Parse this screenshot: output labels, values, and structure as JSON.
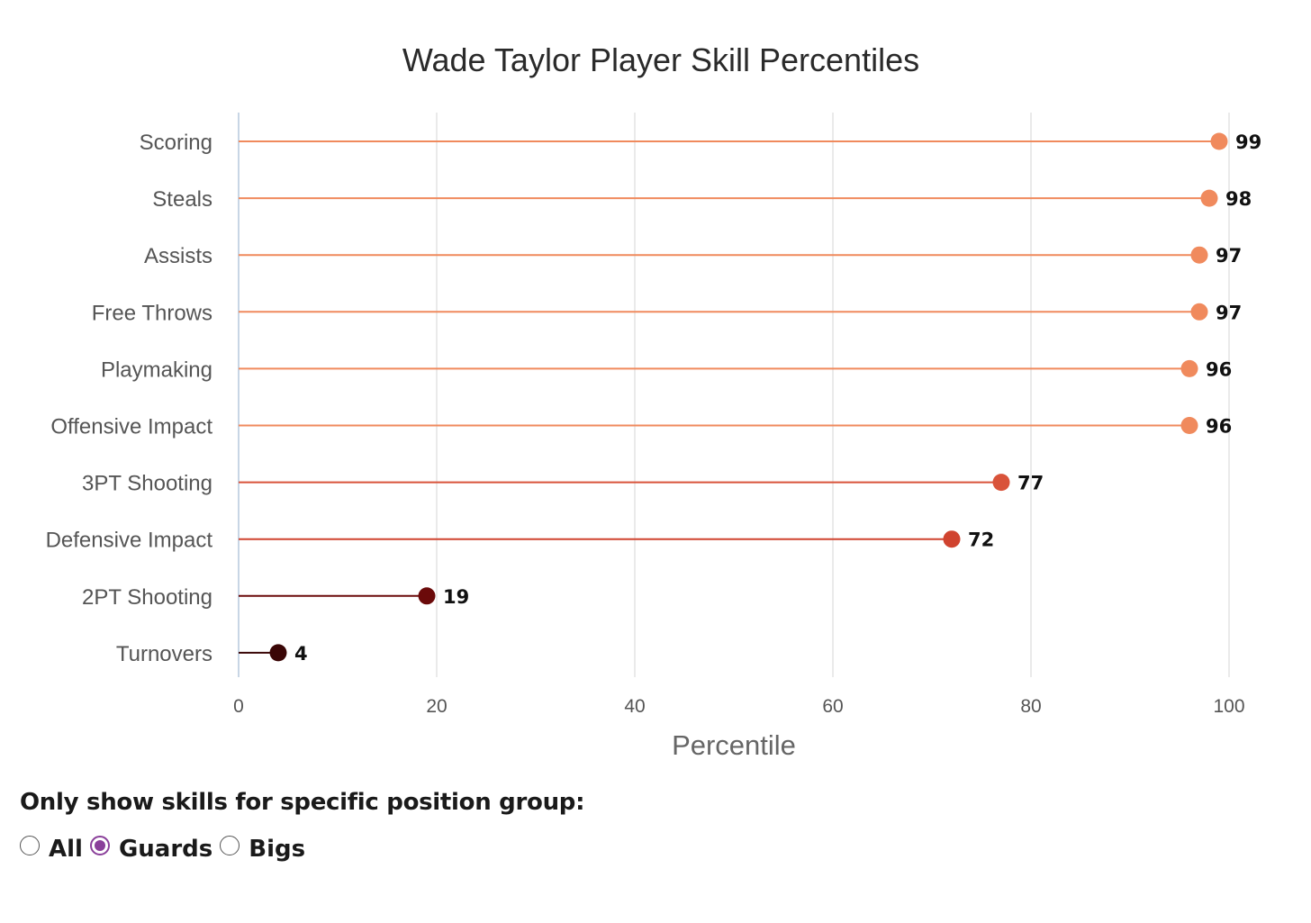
{
  "chart_data": {
    "type": "lollipop",
    "title": "Wade Taylor Player Skill Percentiles",
    "xlabel": "Percentile",
    "ylabel": "",
    "xlim": [
      0,
      100
    ],
    "xticks": [
      "0",
      "20",
      "40",
      "60",
      "80",
      "100"
    ],
    "grid": true,
    "categories": [
      "Scoring",
      "Steals",
      "Assists",
      "Free Throws",
      "Playmaking",
      "Offensive Impact",
      "3PT Shooting",
      "Defensive Impact",
      "2PT Shooting",
      "Turnovers"
    ],
    "values": [
      99,
      98,
      97,
      97,
      96,
      96,
      77,
      72,
      19,
      4
    ],
    "colors": [
      "#f08a5d",
      "#f08a5d",
      "#f08a5d",
      "#f08a5d",
      "#f08a5d",
      "#f08a5d",
      "#d9533a",
      "#d0432f",
      "#6b0a0a",
      "#3a0606"
    ]
  },
  "filter": {
    "heading": "Only show skills for specific position group:",
    "options": [
      {
        "label": "All",
        "checked": false
      },
      {
        "label": "Guards",
        "checked": true
      },
      {
        "label": "Bigs",
        "checked": false
      }
    ],
    "accent_color": "#8a3f9a"
  }
}
